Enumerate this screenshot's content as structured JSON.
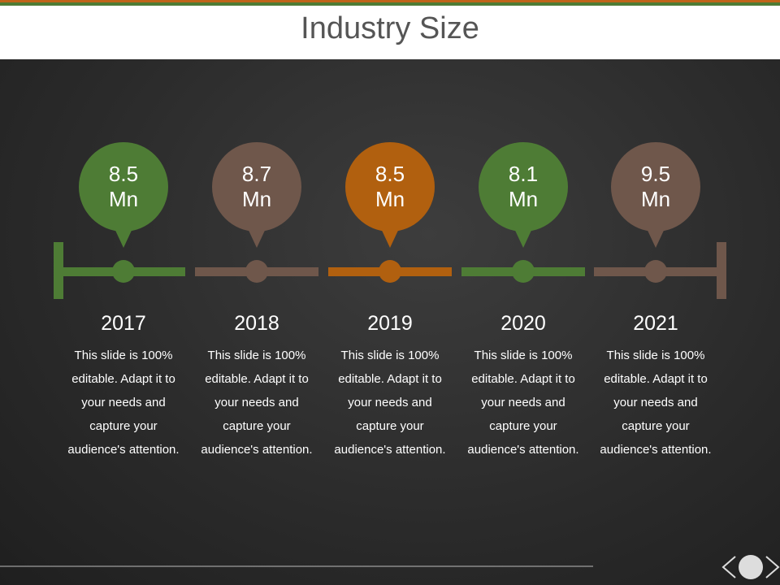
{
  "header": {
    "title": "Industry Size"
  },
  "timeline": [
    {
      "value": "8.5 Mn",
      "year": "2017",
      "text": "This slide is 100% editable. Adapt it to your needs and capture your audience's attention.",
      "color": "#4e7c35"
    },
    {
      "value": "8.7 Mn",
      "year": "2018",
      "text": "This slide is 100% editable. Adapt it to your needs and capture your audience's attention.",
      "color": "#6f574b"
    },
    {
      "value": "8.5 Mn",
      "year": "2019",
      "text": "This slide is 100% editable. Adapt it to your needs and capture your audience's attention.",
      "color": "#b1600f"
    },
    {
      "value": "8.1 Mn",
      "year": "2020",
      "text": "This slide is 100% editable. Adapt it to your needs and capture your audience's attention.",
      "color": "#4e7c35"
    },
    {
      "value": "9.5 Mn",
      "year": "2021",
      "text": "This slide is 100% editable. Adapt it to your needs and capture your audience's attention.",
      "color": "#6f574b"
    }
  ]
}
